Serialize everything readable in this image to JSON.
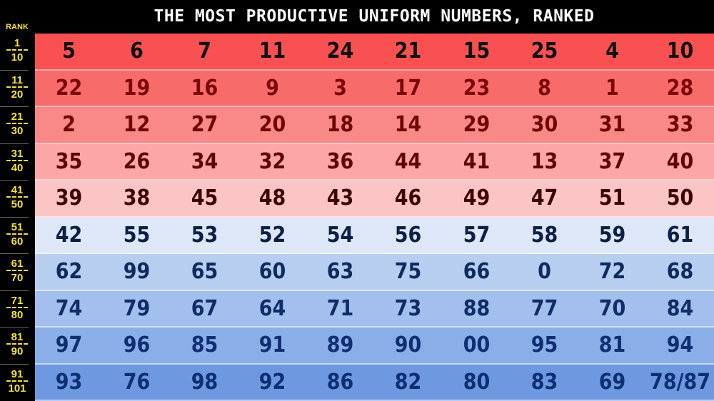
{
  "chart_data": {
    "type": "table",
    "title": "THE MOST PRODUCTIVE UNIFORM NUMBERS, RANKED",
    "row_header_label": "RANK",
    "rows": [
      {
        "rank_top": "1",
        "rank_bottom": "10",
        "bg": "#f95151",
        "fg": "#111111",
        "values": [
          "5",
          "6",
          "7",
          "11",
          "24",
          "21",
          "15",
          "25",
          "4",
          "10"
        ]
      },
      {
        "rank_top": "11",
        "rank_bottom": "20",
        "bg": "#f86b6b",
        "fg": "#7a0808",
        "values": [
          "22",
          "19",
          "16",
          "9",
          "3",
          "17",
          "23",
          "8",
          "1",
          "28"
        ]
      },
      {
        "rank_top": "21",
        "rank_bottom": "30",
        "bg": "#f98888",
        "fg": "#6e0606",
        "values": [
          "2",
          "12",
          "27",
          "20",
          "18",
          "14",
          "29",
          "30",
          "31",
          "33"
        ]
      },
      {
        "rank_top": "31",
        "rank_bottom": "40",
        "bg": "#fba7a7",
        "fg": "#5e0505",
        "values": [
          "35",
          "26",
          "34",
          "32",
          "36",
          "44",
          "41",
          "13",
          "37",
          "40"
        ]
      },
      {
        "rank_top": "41",
        "rank_bottom": "50",
        "bg": "#fcc5c5",
        "fg": "#3e0404",
        "values": [
          "39",
          "38",
          "45",
          "48",
          "43",
          "46",
          "49",
          "47",
          "51",
          "50"
        ]
      },
      {
        "rank_top": "51",
        "rank_bottom": "60",
        "bg": "#dde7f8",
        "fg": "#0c1f44",
        "values": [
          "42",
          "55",
          "53",
          "52",
          "54",
          "56",
          "57",
          "58",
          "59",
          "61"
        ]
      },
      {
        "rank_top": "61",
        "rank_bottom": "70",
        "bg": "#b8cef1",
        "fg": "#0f2b5e",
        "values": [
          "62",
          "99",
          "65",
          "60",
          "63",
          "75",
          "66",
          "0",
          "72",
          "68"
        ]
      },
      {
        "rank_top": "71",
        "rank_bottom": "80",
        "bg": "#a3bfee",
        "fg": "#0f2d66",
        "values": [
          "74",
          "79",
          "67",
          "64",
          "71",
          "73",
          "88",
          "77",
          "70",
          "84"
        ]
      },
      {
        "rank_top": "81",
        "rank_bottom": "90",
        "bg": "#8aaee8",
        "fg": "#0f2f70",
        "values": [
          "97",
          "96",
          "85",
          "91",
          "89",
          "90",
          "00",
          "95",
          "81",
          "94"
        ]
      },
      {
        "rank_top": "91",
        "rank_bottom": "101",
        "bg": "#6e99e0",
        "fg": "#0e2f72",
        "values": [
          "93",
          "76",
          "98",
          "92",
          "86",
          "82",
          "80",
          "83",
          "69",
          "78/87"
        ]
      }
    ]
  }
}
